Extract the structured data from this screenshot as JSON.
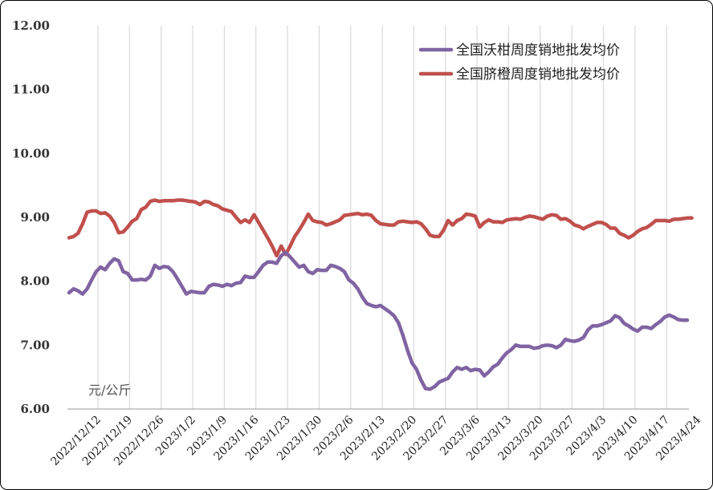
{
  "chart_data": {
    "type": "line",
    "ylabel": "元/公斤",
    "ylim": [
      6.0,
      12.0
    ],
    "yticks": [
      "12.00",
      "11.00",
      "10.00",
      "9.00",
      "8.00",
      "7.00",
      "6.00"
    ],
    "ytick_values": [
      12,
      11,
      10,
      9,
      8,
      7,
      6
    ],
    "x_start": "2022-12-12",
    "xticks": [
      "2022/12/12",
      "2022/12/19",
      "2022/12/26",
      "2023/1/2",
      "2023/1/9",
      "2023/1/16",
      "2023/1/23",
      "2023/1/30",
      "2023/2/6",
      "2023/2/13",
      "2023/2/20",
      "2023/2/27",
      "2023/3/6",
      "2023/3/13",
      "2023/3/20",
      "2023/3/27",
      "2023/4/3",
      "2023/4/10",
      "2023/4/17",
      "2023/4/24"
    ],
    "grid": "vertical",
    "legend_position": "top-right",
    "series": [
      {
        "name": "全国沃柑周度销地批发均价",
        "color": "#8064a2",
        "values": [
          7.82,
          7.88,
          7.85,
          7.8,
          7.88,
          8.02,
          8.15,
          8.22,
          8.18,
          8.28,
          8.35,
          8.32,
          8.15,
          8.12,
          8.02,
          8.02,
          8.03,
          8.02,
          8.08,
          8.25,
          8.2,
          8.23,
          8.22,
          8.15,
          8.04,
          7.92,
          7.8,
          7.84,
          7.83,
          7.82,
          7.82,
          7.92,
          7.95,
          7.94,
          7.92,
          7.95,
          7.93,
          7.97,
          7.98,
          8.08,
          8.06,
          8.06,
          8.15,
          8.25,
          8.3,
          8.3,
          8.28,
          8.4,
          8.45,
          8.38,
          8.3,
          8.22,
          8.25,
          8.15,
          8.12,
          8.18,
          8.17,
          8.17,
          8.25,
          8.23,
          8.2,
          8.15,
          8.02,
          7.97,
          7.88,
          7.75,
          7.65,
          7.62,
          7.6,
          7.62,
          7.57,
          7.52,
          7.46,
          7.35,
          7.15,
          6.92,
          6.72,
          6.62,
          6.45,
          6.32,
          6.31,
          6.35,
          6.42,
          6.45,
          6.48,
          6.58,
          6.65,
          6.62,
          6.65,
          6.6,
          6.62,
          6.61,
          6.52,
          6.58,
          6.66,
          6.7,
          6.8,
          6.88,
          6.93,
          7.0,
          6.98,
          6.98,
          6.98,
          6.95,
          6.96,
          6.99,
          7.0,
          6.99,
          6.96,
          7.0,
          7.09,
          7.07,
          7.06,
          7.08,
          7.12,
          7.24,
          7.3,
          7.3,
          7.32,
          7.35,
          7.38,
          7.46,
          7.43,
          7.34,
          7.3,
          7.25,
          7.22,
          7.28,
          7.28,
          7.26,
          7.32,
          7.37,
          7.44,
          7.47,
          7.44,
          7.4,
          7.39,
          7.39
        ]
      },
      {
        "name": "全国脐橙周度销地批发均价",
        "color": "#c0504d",
        "values": [
          8.68,
          8.7,
          8.75,
          8.9,
          9.08,
          9.1,
          9.1,
          9.06,
          9.07,
          9.02,
          8.92,
          8.76,
          8.77,
          8.85,
          8.94,
          8.98,
          9.12,
          9.16,
          9.25,
          9.27,
          9.25,
          9.26,
          9.26,
          9.26,
          9.27,
          9.27,
          9.26,
          9.25,
          9.24,
          9.2,
          9.25,
          9.24,
          9.2,
          9.18,
          9.13,
          9.11,
          9.09,
          9.0,
          8.92,
          8.96,
          8.92,
          9.04,
          8.92,
          8.8,
          8.68,
          8.55,
          8.4,
          8.55,
          8.42,
          8.55,
          8.7,
          8.8,
          8.92,
          9.05,
          8.95,
          8.93,
          8.92,
          8.88,
          8.9,
          8.93,
          8.96,
          9.03,
          9.04,
          9.05,
          9.06,
          9.04,
          9.05,
          9.03,
          8.95,
          8.9,
          8.89,
          8.88,
          8.88,
          8.93,
          8.94,
          8.93,
          8.92,
          8.93,
          8.9,
          8.82,
          8.72,
          8.7,
          8.7,
          8.8,
          8.95,
          8.88,
          8.95,
          8.98,
          9.05,
          9.04,
          9.02,
          8.85,
          8.92,
          8.96,
          8.93,
          8.93,
          8.92,
          8.96,
          8.97,
          8.98,
          8.97,
          9.0,
          9.02,
          9.01,
          8.99,
          8.97,
          9.02,
          9.04,
          9.03,
          8.97,
          8.98,
          8.94,
          8.88,
          8.86,
          8.82,
          8.86,
          8.89,
          8.92,
          8.92,
          8.89,
          8.83,
          8.83,
          8.75,
          8.72,
          8.68,
          8.72,
          8.78,
          8.82,
          8.84,
          8.89,
          8.95,
          8.95,
          8.95,
          8.94,
          8.97,
          8.97,
          8.98,
          8.99,
          8.99
        ]
      }
    ]
  }
}
